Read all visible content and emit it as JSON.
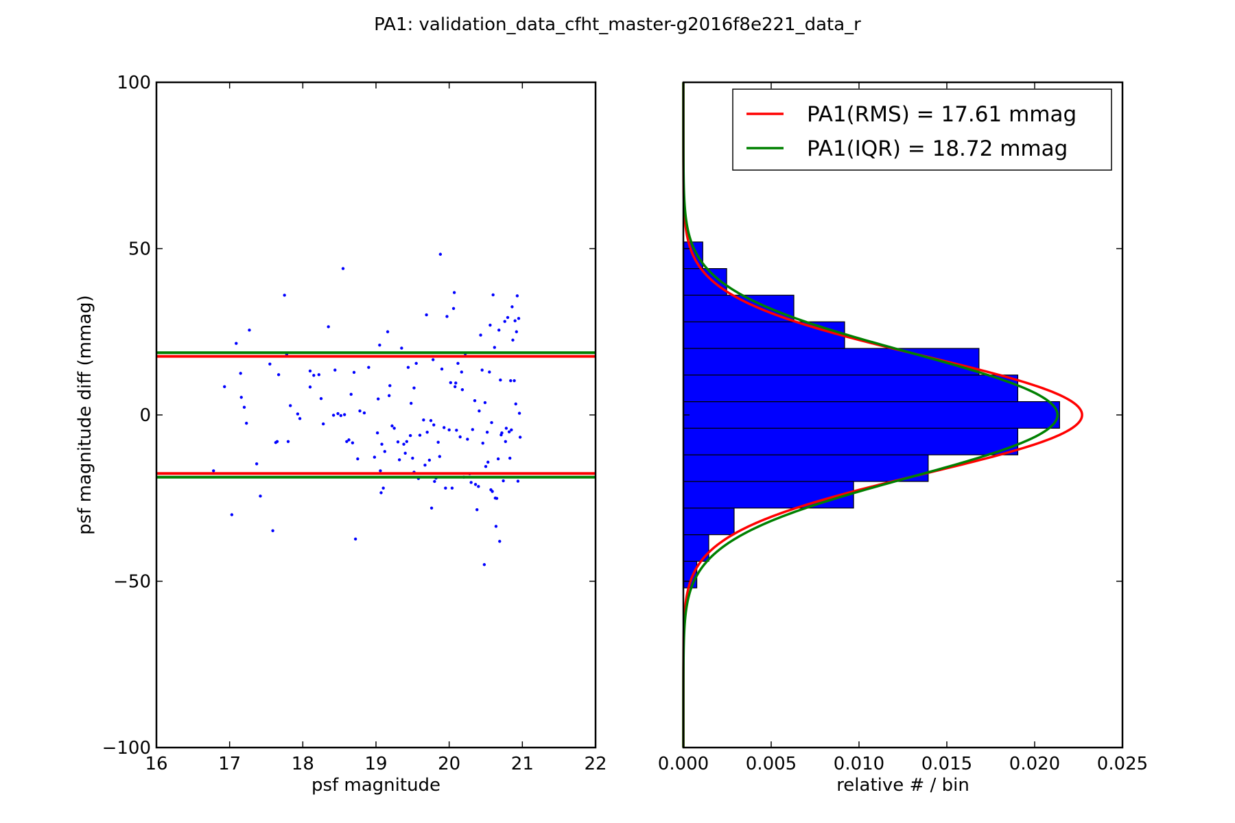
{
  "title": "PA1: validation_data_cfht_master-g2016f8e221_data_r",
  "chart_data": [
    {
      "type": "scatter",
      "xlabel": "psf magnitude",
      "ylabel": "psf magnitude diff (mmag)",
      "xlim": [
        16,
        22
      ],
      "ylim": [
        -100,
        100
      ],
      "xticks": [
        "16",
        "17",
        "18",
        "19",
        "20",
        "21",
        "22"
      ],
      "yticks": [
        "100",
        "50",
        "0",
        "−50",
        "−100"
      ],
      "xtick_values": [
        16,
        17,
        18,
        19,
        20,
        21,
        22
      ],
      "ytick_values": [
        100,
        50,
        0,
        -50,
        -100
      ],
      "point_color": "#0000ff",
      "hlines": [
        {
          "color": "#008000",
          "values": [
            18.72,
            -18.72
          ]
        },
        {
          "color": "#ff0000",
          "values": [
            17.61,
            -17.61
          ]
        }
      ],
      "points": [
        [
          16.78,
          -16.8
        ],
        [
          16.93,
          8.5
        ],
        [
          17.03,
          -30.0
        ],
        [
          17.09,
          21.5
        ],
        [
          17.15,
          12.5
        ],
        [
          17.16,
          5.3
        ],
        [
          17.2,
          2.3
        ],
        [
          17.23,
          -2.5
        ],
        [
          17.27,
          25.5
        ],
        [
          17.37,
          -14.7
        ],
        [
          17.42,
          -24.4
        ],
        [
          17.55,
          15.3
        ],
        [
          17.59,
          -34.8
        ],
        [
          17.63,
          -8.3
        ],
        [
          17.65,
          -8.0
        ],
        [
          17.67,
          12.1
        ],
        [
          17.75,
          36.0
        ],
        [
          17.78,
          18.2
        ],
        [
          17.8,
          -8.0
        ],
        [
          17.83,
          2.8
        ],
        [
          17.93,
          0.3
        ],
        [
          17.96,
          -1.1
        ],
        [
          18.1,
          13.2
        ],
        [
          18.1,
          8.4
        ],
        [
          18.15,
          11.9
        ],
        [
          18.22,
          12.1
        ],
        [
          18.25,
          4.9
        ],
        [
          18.28,
          -2.7
        ],
        [
          18.35,
          26.5
        ],
        [
          18.42,
          -0.1
        ],
        [
          18.44,
          13.5
        ],
        [
          18.48,
          0.4
        ],
        [
          18.52,
          -0.2
        ],
        [
          18.55,
          44.0
        ],
        [
          18.57,
          0.1
        ],
        [
          18.6,
          -8.0
        ],
        [
          18.63,
          -7.5
        ],
        [
          18.66,
          6.2
        ],
        [
          18.68,
          -8.4
        ],
        [
          18.7,
          12.8
        ],
        [
          18.72,
          -37.3
        ],
        [
          18.75,
          -13.2
        ],
        [
          18.78,
          1.2
        ],
        [
          18.84,
          0.6
        ],
        [
          18.9,
          14.3
        ],
        [
          18.98,
          -12.7
        ],
        [
          19.02,
          -5.4
        ],
        [
          19.03,
          4.8
        ],
        [
          19.05,
          21.0
        ],
        [
          19.06,
          -16.8
        ],
        [
          19.07,
          -23.4
        ],
        [
          19.08,
          -8.8
        ],
        [
          19.1,
          -22.0
        ],
        [
          19.12,
          -11.0
        ],
        [
          19.16,
          25.0
        ],
        [
          19.18,
          5.8
        ],
        [
          19.19,
          8.8
        ],
        [
          19.22,
          -3.3
        ],
        [
          19.25,
          -4.0
        ],
        [
          19.3,
          -8.1
        ],
        [
          19.32,
          -13.5
        ],
        [
          19.35,
          20.1
        ],
        [
          19.38,
          -8.8
        ],
        [
          19.4,
          -11.5
        ],
        [
          19.42,
          -8.0
        ],
        [
          19.44,
          14.3
        ],
        [
          19.47,
          -6.2
        ],
        [
          19.48,
          3.5
        ],
        [
          19.5,
          -13.0
        ],
        [
          19.52,
          8.1
        ],
        [
          19.52,
          -17.2
        ],
        [
          19.55,
          15.5
        ],
        [
          19.58,
          -19.1
        ],
        [
          19.6,
          -6.1
        ],
        [
          19.65,
          -1.5
        ],
        [
          19.67,
          -15.1
        ],
        [
          19.69,
          30.1
        ],
        [
          19.7,
          -5.2
        ],
        [
          19.73,
          -13.6
        ],
        [
          19.75,
          -1.7
        ],
        [
          19.76,
          -28.0
        ],
        [
          19.78,
          16.6
        ],
        [
          19.79,
          -3.0
        ],
        [
          19.8,
          -20.0
        ],
        [
          19.82,
          -19.0
        ],
        [
          19.85,
          -8.2
        ],
        [
          19.87,
          -12.5
        ],
        [
          19.88,
          48.3
        ],
        [
          19.9,
          13.8
        ],
        [
          19.93,
          -3.8
        ],
        [
          19.95,
          -22.0
        ],
        [
          19.97,
          29.6
        ],
        [
          20.0,
          -4.5
        ],
        [
          20.02,
          9.7
        ],
        [
          20.04,
          -22.0
        ],
        [
          20.06,
          32.0
        ],
        [
          20.07,
          36.8
        ],
        [
          20.08,
          8.5
        ],
        [
          20.09,
          9.6
        ],
        [
          20.1,
          -4.6
        ],
        [
          20.12,
          15.5
        ],
        [
          20.15,
          -6.6
        ],
        [
          20.17,
          12.9
        ],
        [
          20.18,
          7.6
        ],
        [
          20.2,
          -18.7
        ],
        [
          20.22,
          18.4
        ],
        [
          20.25,
          -7.3
        ],
        [
          20.28,
          -17.7
        ],
        [
          20.3,
          -20.3
        ],
        [
          20.32,
          -4.4
        ],
        [
          20.35,
          4.3
        ],
        [
          20.36,
          -20.9
        ],
        [
          20.38,
          -28.5
        ],
        [
          20.4,
          -21.5
        ],
        [
          20.41,
          1.2
        ],
        [
          20.43,
          24.0
        ],
        [
          20.45,
          13.5
        ],
        [
          20.46,
          -8.5
        ],
        [
          20.48,
          -45.0
        ],
        [
          20.49,
          3.7
        ],
        [
          20.5,
          -15.5
        ],
        [
          20.52,
          -5.2
        ],
        [
          20.53,
          -14.2
        ],
        [
          20.55,
          12.9
        ],
        [
          20.56,
          27.0
        ],
        [
          20.57,
          -22.5
        ],
        [
          20.58,
          -2.3
        ],
        [
          20.59,
          -23.0
        ],
        [
          20.6,
          36.1
        ],
        [
          20.62,
          20.3
        ],
        [
          20.63,
          -25.0
        ],
        [
          20.64,
          -33.5
        ],
        [
          20.65,
          -25.1
        ],
        [
          20.67,
          -13.2
        ],
        [
          20.68,
          25.5
        ],
        [
          20.69,
          -38.0
        ],
        [
          20.7,
          10.5
        ],
        [
          20.71,
          -6.0
        ],
        [
          20.72,
          -5.4
        ],
        [
          20.74,
          -19.8
        ],
        [
          20.76,
          28.1
        ],
        [
          20.77,
          -8.0
        ],
        [
          20.78,
          -4.0
        ],
        [
          20.8,
          29.3
        ],
        [
          20.82,
          -5.1
        ],
        [
          20.83,
          -13.0
        ],
        [
          20.84,
          10.3
        ],
        [
          20.85,
          -4.5
        ],
        [
          20.86,
          32.5
        ],
        [
          20.87,
          22.5
        ],
        [
          20.89,
          10.3
        ],
        [
          20.9,
          28.3
        ],
        [
          20.91,
          3.3
        ],
        [
          20.92,
          25.0
        ],
        [
          20.93,
          35.8
        ],
        [
          20.94,
          -19.9
        ],
        [
          20.95,
          29.0
        ],
        [
          20.96,
          0.5
        ],
        [
          20.97,
          -6.7
        ]
      ]
    },
    {
      "type": "histogram",
      "orientation": "horizontal",
      "xlabel": "relative # / bin",
      "xlim": [
        0.0,
        0.025
      ],
      "ylim": [
        -100,
        100
      ],
      "xticks": [
        "0.000",
        "0.005",
        "0.010",
        "0.015",
        "0.020",
        "0.025"
      ],
      "xtick_values": [
        0.0,
        0.005,
        0.01,
        0.015,
        0.02,
        0.025
      ],
      "bar_color": "#0000ff",
      "bins": [
        {
          "from": -52,
          "to": -44,
          "value": 0.0009
        },
        {
          "from": -44,
          "to": -36,
          "value": 0.0017
        },
        {
          "from": -36,
          "to": -28,
          "value": 0.0034
        },
        {
          "from": -28,
          "to": -20,
          "value": 0.0114
        },
        {
          "from": -20,
          "to": -12,
          "value": 0.0164
        },
        {
          "from": -12,
          "to": -4,
          "value": 0.0224
        },
        {
          "from": -4,
          "to": 4,
          "value": 0.0252
        },
        {
          "from": 4,
          "to": 12,
          "value": 0.0224
        },
        {
          "from": 12,
          "to": 20,
          "value": 0.0198
        },
        {
          "from": 20,
          "to": 28,
          "value": 0.0108
        },
        {
          "from": 28,
          "to": 36,
          "value": 0.0074
        },
        {
          "from": 36,
          "to": 44,
          "value": 0.0029
        },
        {
          "from": 44,
          "to": 52,
          "value": 0.0013
        }
      ],
      "display_scale": 0.85,
      "series": [
        {
          "name": "PA1(RMS) = 17.61 mmag",
          "color": "#ff0000",
          "sigma": 17.61,
          "peak": 0.0227
        },
        {
          "name": "PA1(IQR) = 18.72 mmag",
          "color": "#008000",
          "sigma": 18.72,
          "peak": 0.0213
        }
      ],
      "legend_position": "upper right"
    }
  ]
}
